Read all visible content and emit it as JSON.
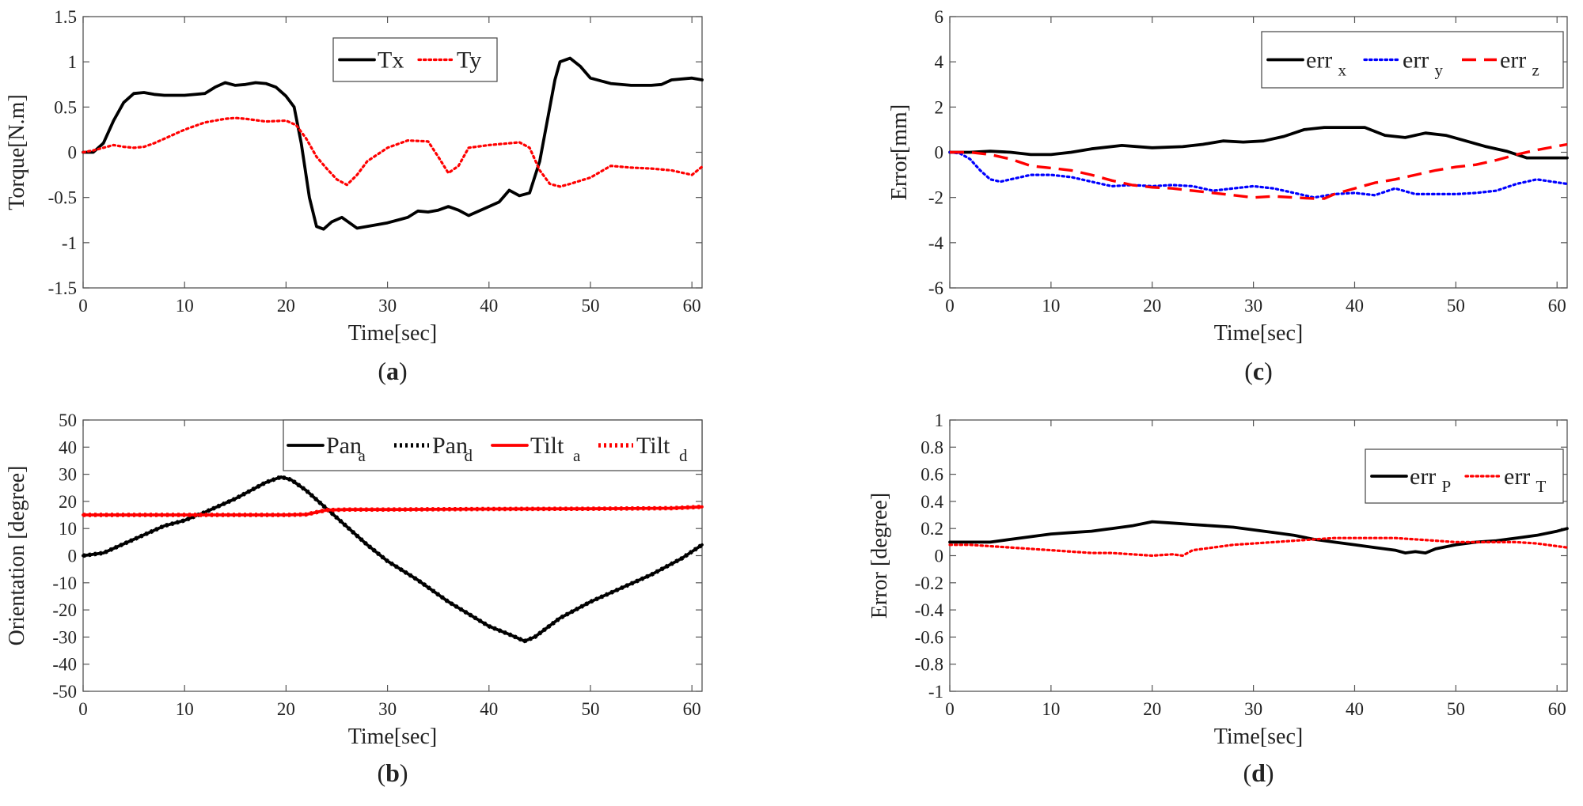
{
  "chart_data": [
    {
      "id": "a",
      "type": "line",
      "caption": "a",
      "xlabel": "Time[sec]",
      "ylabel": "Torque[N.m]",
      "xlim": [
        0,
        61
      ],
      "ylim": [
        -1.5,
        1.5
      ],
      "xticks": [
        "0",
        "10",
        "20",
        "30",
        "40",
        "50",
        "60"
      ],
      "yticks": [
        "-1.5",
        "-1",
        "-0.5",
        "0",
        "0.5",
        "1",
        "1.5"
      ],
      "legend": "top-center",
      "series": [
        {
          "name": "Tx",
          "color": "#000000",
          "style": "solid",
          "x": [
            0,
            1,
            2,
            3,
            4,
            5,
            6,
            7,
            8,
            10,
            12,
            13,
            14,
            15,
            16,
            17,
            18,
            19,
            20,
            20.8,
            21.5,
            22.3,
            23,
            23.7,
            24.5,
            25.5,
            27,
            28,
            30,
            32,
            33,
            34,
            35,
            36,
            37,
            38,
            40,
            41,
            42,
            43,
            44,
            45,
            46,
            46.5,
            47,
            48,
            49,
            50,
            52,
            54,
            56,
            57,
            58,
            60,
            61
          ],
          "y": [
            0,
            0,
            0.1,
            0.35,
            0.55,
            0.65,
            0.66,
            0.64,
            0.63,
            0.63,
            0.65,
            0.72,
            0.77,
            0.74,
            0.75,
            0.77,
            0.76,
            0.72,
            0.62,
            0.5,
            0.1,
            -0.5,
            -0.82,
            -0.85,
            -0.77,
            -0.72,
            -0.84,
            -0.82,
            -0.78,
            -0.72,
            -0.65,
            -0.66,
            -0.64,
            -0.6,
            -0.64,
            -0.7,
            -0.6,
            -0.55,
            -0.42,
            -0.48,
            -0.45,
            -0.1,
            0.5,
            0.8,
            1.0,
            1.04,
            0.95,
            0.82,
            0.76,
            0.74,
            0.74,
            0.75,
            0.8,
            0.82,
            0.8
          ]
        },
        {
          "name": "Ty",
          "color": "#ff0000",
          "style": "dotted",
          "x": [
            0,
            1,
            2,
            3,
            4,
            5,
            6,
            7,
            8,
            10,
            12,
            14,
            15,
            16,
            18,
            20,
            21,
            22,
            23,
            24,
            25,
            26,
            27,
            28,
            30,
            32,
            34,
            35,
            36,
            37,
            38,
            40,
            42,
            43,
            44,
            45,
            46,
            47,
            48,
            50,
            52,
            54,
            56,
            58,
            60,
            61
          ],
          "y": [
            0,
            0.02,
            0.05,
            0.08,
            0.06,
            0.05,
            0.06,
            0.1,
            0.15,
            0.25,
            0.33,
            0.37,
            0.38,
            0.37,
            0.34,
            0.35,
            0.3,
            0.15,
            -0.05,
            -0.18,
            -0.3,
            -0.36,
            -0.25,
            -0.1,
            0.05,
            0.13,
            0.12,
            -0.05,
            -0.23,
            -0.15,
            0.05,
            0.08,
            0.1,
            0.11,
            0.05,
            -0.2,
            -0.35,
            -0.38,
            -0.35,
            -0.28,
            -0.15,
            -0.17,
            -0.18,
            -0.2,
            -0.25,
            -0.16
          ]
        }
      ]
    },
    {
      "id": "c",
      "type": "line",
      "caption": "c",
      "xlabel": "Time[sec]",
      "ylabel": "Error[mm]",
      "xlim": [
        0,
        61
      ],
      "ylim": [
        -6,
        6
      ],
      "xticks": [
        "0",
        "10",
        "20",
        "30",
        "40",
        "50",
        "60"
      ],
      "yticks": [
        "-6",
        "-4",
        "-2",
        "0",
        "2",
        "4",
        "6"
      ],
      "legend": "top-right",
      "series": [
        {
          "name": "err",
          "subscript": "x",
          "color": "#000000",
          "style": "solid",
          "x": [
            0,
            2,
            4,
            6,
            8,
            10,
            12,
            14,
            17,
            20,
            23,
            25,
            27,
            29,
            31,
            33,
            35,
            37,
            39,
            41,
            43,
            45,
            47,
            49,
            51,
            53,
            55,
            57,
            61
          ],
          "y": [
            0,
            0,
            0.05,
            0,
            -0.1,
            -0.1,
            0,
            0.15,
            0.3,
            0.2,
            0.25,
            0.35,
            0.5,
            0.45,
            0.5,
            0.7,
            1.0,
            1.1,
            1.1,
            1.1,
            0.75,
            0.65,
            0.85,
            0.75,
            0.5,
            0.25,
            0.05,
            -0.25,
            -0.25
          ]
        },
        {
          "name": "err",
          "subscript": "y",
          "color": "#0000ff",
          "style": "dotted",
          "x": [
            0,
            1,
            2,
            3,
            4,
            5,
            6,
            8,
            10,
            12,
            14,
            16,
            18,
            20,
            22,
            24,
            26,
            28,
            30,
            32,
            34,
            36,
            38,
            40,
            42,
            44,
            46,
            48,
            50,
            52,
            54,
            56,
            58,
            61
          ],
          "y": [
            0,
            -0.05,
            -0.3,
            -0.8,
            -1.2,
            -1.3,
            -1.2,
            -1.0,
            -1.0,
            -1.1,
            -1.3,
            -1.5,
            -1.45,
            -1.5,
            -1.45,
            -1.5,
            -1.7,
            -1.6,
            -1.5,
            -1.6,
            -1.8,
            -2.0,
            -1.85,
            -1.8,
            -1.9,
            -1.6,
            -1.85,
            -1.85,
            -1.85,
            -1.8,
            -1.7,
            -1.4,
            -1.2,
            -1.4
          ]
        },
        {
          "name": "err",
          "subscript": "z",
          "color": "#ff0000",
          "style": "dashed",
          "x": [
            0,
            2,
            4,
            6,
            8,
            10,
            12,
            14,
            16,
            18,
            20,
            22,
            24,
            26,
            28,
            30,
            32,
            34,
            36,
            37,
            38,
            40,
            42,
            44,
            46,
            48,
            50,
            52,
            54,
            56,
            58,
            61
          ],
          "y": [
            0,
            0,
            -0.1,
            -0.3,
            -0.6,
            -0.7,
            -0.8,
            -1.0,
            -1.25,
            -1.45,
            -1.55,
            -1.6,
            -1.7,
            -1.8,
            -1.9,
            -2.0,
            -1.95,
            -2.0,
            -2.05,
            -2.05,
            -1.85,
            -1.6,
            -1.35,
            -1.2,
            -1.0,
            -0.8,
            -0.65,
            -0.55,
            -0.35,
            -0.1,
            0.1,
            0.35
          ]
        }
      ]
    },
    {
      "id": "b",
      "type": "line",
      "caption": "b",
      "xlabel": "Time[sec]",
      "ylabel": "Orientation [degree]",
      "xlim": [
        0,
        61
      ],
      "ylim": [
        -50,
        50
      ],
      "xticks": [
        "0",
        "10",
        "20",
        "30",
        "40",
        "50",
        "60"
      ],
      "yticks": [
        "-50",
        "-40",
        "-30",
        "-20",
        "-10",
        "0",
        "10",
        "20",
        "30",
        "40",
        "50"
      ],
      "legend": "top-right",
      "series": [
        {
          "name": "Pan",
          "subscript": "a",
          "color": "#000000",
          "style": "solid",
          "x": [
            0,
            2,
            5,
            8,
            10,
            12,
            15,
            18,
            19.5,
            20.5,
            22,
            25,
            28,
            30,
            33,
            36,
            40,
            42,
            43.5,
            44.5,
            47,
            50,
            53,
            56,
            59,
            61
          ],
          "y": [
            0,
            1,
            6,
            11,
            13,
            16,
            21,
            27,
            29,
            28,
            24,
            14,
            4,
            -2,
            -9,
            -17,
            -26,
            -29,
            -31.5,
            -30,
            -23,
            -17,
            -12,
            -7,
            -1,
            4
          ]
        },
        {
          "name": "Pan",
          "subscript": "d",
          "color": "#000000",
          "style": "dotted-thick",
          "x": [
            0,
            2,
            5,
            8,
            10,
            12,
            15,
            18,
            19.5,
            20.5,
            22,
            25,
            28,
            30,
            33,
            36,
            40,
            42,
            43.5,
            44.5,
            47,
            50,
            53,
            56,
            59,
            61
          ],
          "y": [
            0,
            1,
            6,
            11,
            13,
            16,
            21,
            27,
            29,
            28,
            24,
            14,
            4,
            -2,
            -9,
            -17,
            -26,
            -29,
            -31.5,
            -30,
            -23,
            -17,
            -12,
            -7,
            -1,
            4
          ]
        },
        {
          "name": "Tilt",
          "subscript": "a",
          "color": "#ff0000",
          "style": "solid",
          "x": [
            0,
            10,
            20,
            22,
            23,
            24,
            26,
            30,
            40,
            50,
            58,
            61
          ],
          "y": [
            15,
            15,
            15,
            15.2,
            16,
            16.8,
            17,
            17,
            17.2,
            17.3,
            17.5,
            18
          ]
        },
        {
          "name": "Tilt",
          "subscript": "d",
          "color": "#ff0000",
          "style": "dotted-thick",
          "x": [
            0,
            10,
            20,
            22,
            23,
            24,
            26,
            30,
            40,
            50,
            58,
            61
          ],
          "y": [
            15,
            15,
            15,
            15.2,
            16,
            16.8,
            17,
            17,
            17.2,
            17.3,
            17.5,
            18
          ]
        }
      ]
    },
    {
      "id": "d",
      "type": "line",
      "caption": "d",
      "xlabel": "Time[sec]",
      "ylabel": "Error [degree]",
      "xlim": [
        0,
        61
      ],
      "ylim": [
        -1,
        1
      ],
      "xticks": [
        "0",
        "10",
        "20",
        "30",
        "40",
        "50",
        "60"
      ],
      "yticks": [
        "-1",
        "-0.8",
        "-0.6",
        "-0.4",
        "-0.2",
        "0",
        "0.2",
        "0.4",
        "0.6",
        "0.8",
        "1"
      ],
      "legend": "top-right",
      "series": [
        {
          "name": "err",
          "subscript": "P",
          "color": "#000000",
          "style": "solid",
          "x": [
            0,
            2,
            4,
            6,
            8,
            10,
            12,
            14,
            16,
            18,
            20,
            22,
            24,
            26,
            28,
            30,
            32,
            34,
            36,
            38,
            40,
            42,
            44,
            45,
            46,
            47,
            48,
            50,
            52,
            54,
            56,
            58,
            60,
            61
          ],
          "y": [
            0.1,
            0.1,
            0.1,
            0.12,
            0.14,
            0.16,
            0.17,
            0.18,
            0.2,
            0.22,
            0.25,
            0.24,
            0.23,
            0.22,
            0.21,
            0.19,
            0.17,
            0.15,
            0.12,
            0.1,
            0.08,
            0.06,
            0.04,
            0.02,
            0.03,
            0.02,
            0.05,
            0.08,
            0.1,
            0.11,
            0.13,
            0.15,
            0.18,
            0.2
          ]
        },
        {
          "name": "err",
          "subscript": "T",
          "color": "#ff0000",
          "style": "dotted",
          "x": [
            0,
            2,
            4,
            6,
            8,
            10,
            12,
            14,
            16,
            18,
            20,
            22,
            23,
            24,
            26,
            28,
            30,
            32,
            34,
            36,
            38,
            40,
            42,
            44,
            46,
            48,
            50,
            52,
            54,
            56,
            58,
            60,
            61
          ],
          "y": [
            0.08,
            0.08,
            0.07,
            0.06,
            0.05,
            0.04,
            0.03,
            0.02,
            0.02,
            0.01,
            0.0,
            0.01,
            0.0,
            0.04,
            0.06,
            0.08,
            0.09,
            0.1,
            0.11,
            0.12,
            0.13,
            0.13,
            0.13,
            0.13,
            0.12,
            0.11,
            0.1,
            0.1,
            0.1,
            0.1,
            0.09,
            0.07,
            0.06
          ]
        }
      ]
    }
  ]
}
